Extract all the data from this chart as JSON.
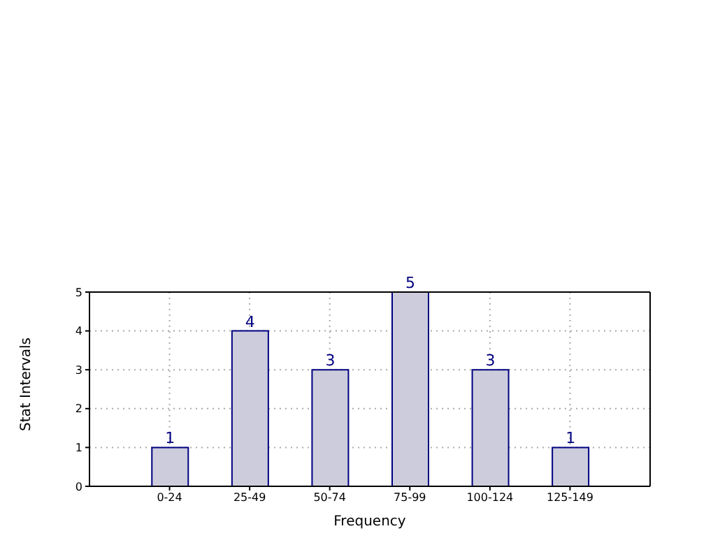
{
  "chart_data": {
    "type": "bar",
    "xlabel": "Frequency",
    "ylabel": "Stat Intervals",
    "categories": [
      "0-24",
      "25-49",
      "50-74",
      "75-99",
      "100-124",
      "125-149"
    ],
    "values": [
      1,
      4,
      3,
      5,
      3,
      1
    ],
    "color": "#ccccdd",
    "ylim": [
      0,
      5
    ],
    "yticks": [
      0,
      1,
      2,
      3,
      4,
      5
    ],
    "grid": true,
    "data_labels": true
  }
}
